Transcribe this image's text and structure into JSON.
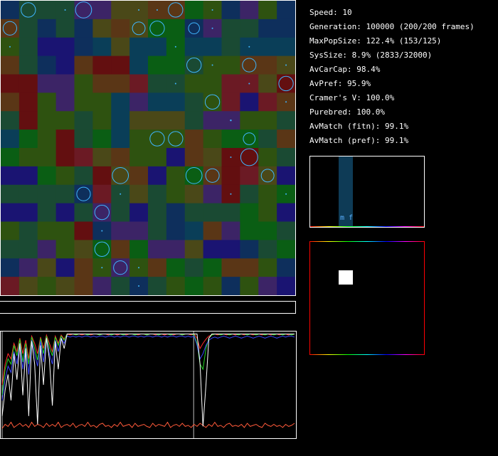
{
  "stats": [
    "Speed: 10",
    "Generation: 100000 (200/200 frames)",
    "MaxPopSize: 122.4% (153/125)",
    "SysSize: 8.9% (2833/32000)",
    "AvCarCap: 98.4%",
    "AvPref: 95.9%",
    "Cramer's V: 100.0%",
    "Purebred: 100.0%",
    "AvMatch (fitn): 99.1%",
    "AvMatch (pref): 99.1%"
  ],
  "pref_panel": {
    "label": "m f"
  },
  "colors": {
    "palette": [
      "#1a4a33",
      "#0a5e14",
      "#2e5210",
      "#3c2466",
      "#0e2f5c",
      "#1a1472",
      "#630f10",
      "#6b1a24",
      "#4a4818",
      "#5a3616",
      "#0a3e58"
    ],
    "organism": "#3fb6ff",
    "history_lines": [
      "#ffffff",
      "#ff2b2b",
      "#24d824",
      "#3a46ff",
      "#ff5a3a"
    ]
  },
  "grid": {
    "size": 16,
    "cells": [
      [
        4,
        0,
        0,
        0,
        3,
        3,
        8,
        8,
        9,
        9,
        1,
        2,
        4,
        3,
        2,
        4
      ],
      [
        9,
        0,
        4,
        0,
        4,
        8,
        9,
        8,
        1,
        1,
        4,
        3,
        0,
        0,
        4,
        4
      ],
      [
        2,
        0,
        5,
        5,
        4,
        10,
        8,
        10,
        10,
        1,
        10,
        10,
        0,
        10,
        10,
        10
      ],
      [
        9,
        0,
        4,
        5,
        9,
        6,
        6,
        10,
        1,
        1,
        0,
        2,
        2,
        9,
        9,
        8
      ],
      [
        6,
        6,
        3,
        3,
        2,
        9,
        9,
        7,
        0,
        0,
        2,
        2,
        7,
        7,
        8,
        6
      ],
      [
        9,
        6,
        2,
        3,
        2,
        2,
        10,
        3,
        10,
        10,
        0,
        2,
        7,
        5,
        7,
        9
      ],
      [
        0,
        6,
        2,
        2,
        0,
        2,
        10,
        8,
        8,
        8,
        0,
        3,
        3,
        2,
        2,
        0
      ],
      [
        10,
        1,
        2,
        6,
        0,
        1,
        10,
        2,
        2,
        2,
        9,
        2,
        1,
        1,
        0,
        9
      ],
      [
        1,
        2,
        2,
        6,
        7,
        8,
        9,
        2,
        2,
        5,
        9,
        8,
        6,
        6,
        2,
        0
      ],
      [
        5,
        5,
        1,
        2,
        0,
        6,
        8,
        9,
        5,
        2,
        1,
        9,
        6,
        7,
        8,
        5
      ],
      [
        0,
        0,
        0,
        0,
        4,
        7,
        0,
        8,
        0,
        2,
        8,
        3,
        6,
        0,
        2,
        1
      ],
      [
        5,
        5,
        0,
        5,
        0,
        3,
        0,
        5,
        0,
        4,
        0,
        0,
        0,
        1,
        2,
        5
      ],
      [
        2,
        0,
        2,
        2,
        6,
        4,
        3,
        3,
        0,
        4,
        10,
        9,
        3,
        1,
        1,
        0
      ],
      [
        0,
        0,
        3,
        2,
        8,
        1,
        9,
        1,
        3,
        3,
        8,
        5,
        5,
        4,
        0,
        1
      ],
      [
        4,
        3,
        8,
        5,
        9,
        2,
        3,
        2,
        9,
        1,
        0,
        1,
        9,
        9,
        2,
        4
      ],
      [
        7,
        8,
        2,
        8,
        9,
        3,
        0,
        4,
        0,
        2,
        1,
        2,
        4,
        2,
        3,
        5
      ]
    ],
    "organisms": [
      [
        0,
        1,
        0.85
      ],
      [
        0,
        3,
        0.05
      ],
      [
        0,
        4,
        0.95
      ],
      [
        0,
        7,
        0.05
      ],
      [
        0,
        8,
        0.05
      ],
      [
        0,
        9,
        0.85
      ],
      [
        0,
        11,
        0.05
      ],
      [
        1,
        0,
        0.8
      ],
      [
        1,
        7,
        0.75
      ],
      [
        1,
        8,
        0.85
      ],
      [
        1,
        10,
        0.65
      ],
      [
        1,
        11,
        0.05
      ],
      [
        2,
        0,
        0.05
      ],
      [
        2,
        9,
        0.05
      ],
      [
        2,
        13,
        0.05
      ],
      [
        3,
        10,
        0.85
      ],
      [
        3,
        11,
        0.05
      ],
      [
        3,
        13,
        0.8
      ],
      [
        3,
        15,
        0.05
      ],
      [
        4,
        9,
        0.05
      ],
      [
        4,
        13,
        0.05
      ],
      [
        4,
        15,
        0.85
      ],
      [
        5,
        11,
        0.85
      ],
      [
        5,
        15,
        0.05
      ],
      [
        6,
        12,
        0.1
      ],
      [
        7,
        8,
        0.85
      ],
      [
        7,
        9,
        0.85
      ],
      [
        7,
        13,
        0.7
      ],
      [
        8,
        12,
        0.05
      ],
      [
        8,
        13,
        1.0
      ],
      [
        9,
        6,
        0.95
      ],
      [
        9,
        10,
        0.95
      ],
      [
        9,
        11,
        0.8
      ],
      [
        9,
        14,
        0.75
      ],
      [
        10,
        4,
        0.8
      ],
      [
        10,
        6,
        0.05
      ],
      [
        10,
        12,
        0.05
      ],
      [
        10,
        15,
        0.05
      ],
      [
        11,
        5,
        0.85
      ],
      [
        12,
        5,
        0.05
      ],
      [
        13,
        5,
        0.85
      ],
      [
        14,
        5,
        0.05
      ],
      [
        14,
        6,
        0.8
      ],
      [
        14,
        7,
        0.05
      ],
      [
        15,
        7,
        0.05
      ]
    ]
  },
  "history": {
    "series": [
      {
        "name": "white",
        "values": [
          0.2,
          0.45,
          0.6,
          0.35,
          0.8,
          0.55,
          0.9,
          0.4,
          0.85,
          0.2,
          0.92,
          0.7,
          0.12,
          0.88,
          0.5,
          0.95,
          0.75,
          0.3,
          0.92,
          0.65,
          0.95,
          0.85,
          0.99,
          0.99,
          0.99,
          0.99,
          0.99,
          0.99,
          0.99,
          0.99,
          0.99,
          0.99,
          0.99,
          0.99,
          0.99,
          0.99,
          0.99,
          0.99,
          0.99,
          0.99,
          0.99,
          0.99,
          0.99,
          0.99,
          0.99,
          0.99,
          0.99,
          0.99,
          0.99,
          0.99,
          0.99,
          0.99,
          0.99,
          0.99,
          0.99,
          0.99,
          0.99,
          0.99,
          0.99,
          0.99,
          0.99,
          0.99,
          0.99,
          0.99,
          0.99,
          0.99,
          0.99,
          0.7,
          0.1,
          0.5,
          0.95,
          0.99,
          0.99,
          0.99,
          0.99,
          0.99,
          0.99,
          0.99,
          0.99,
          0.99,
          0.99,
          0.99,
          0.99,
          0.99,
          0.99,
          0.99,
          0.99,
          0.99,
          0.99,
          0.99,
          0.99,
          0.99,
          0.99,
          0.99,
          0.99,
          0.99,
          0.99,
          0.99,
          0.99,
          0.99
        ]
      },
      {
        "name": "red",
        "values": [
          0.5,
          0.7,
          0.8,
          0.75,
          0.9,
          0.82,
          0.95,
          0.8,
          0.93,
          0.75,
          0.97,
          0.9,
          0.8,
          0.96,
          0.85,
          0.98,
          0.9,
          0.82,
          0.97,
          0.9,
          0.98,
          0.94,
          0.99,
          0.98,
          0.99,
          0.98,
          0.99,
          0.98,
          0.99,
          0.99,
          0.98,
          0.99,
          0.99,
          0.98,
          0.99,
          0.99,
          0.98,
          0.99,
          0.99,
          0.98,
          0.99,
          0.99,
          0.98,
          0.99,
          0.99,
          0.99,
          0.98,
          0.99,
          0.99,
          0.98,
          0.99,
          0.99,
          0.98,
          0.99,
          0.99,
          0.98,
          0.99,
          0.99,
          0.98,
          0.99,
          0.99,
          0.98,
          0.99,
          0.99,
          0.98,
          0.99,
          0.95,
          0.85,
          0.9,
          0.94,
          0.97,
          0.98,
          0.99,
          0.98,
          0.99,
          0.99,
          0.98,
          0.99,
          0.99,
          0.98,
          0.99,
          0.99,
          0.98,
          0.99,
          0.99,
          0.98,
          0.99,
          0.99,
          0.98,
          0.99,
          0.99,
          0.98,
          0.99,
          0.99,
          0.98,
          0.99,
          0.99,
          0.98,
          0.99,
          0.99
        ]
      },
      {
        "name": "green",
        "values": [
          0.4,
          0.65,
          0.75,
          0.7,
          0.88,
          0.78,
          0.94,
          0.72,
          0.9,
          0.7,
          0.96,
          0.85,
          0.74,
          0.95,
          0.8,
          0.97,
          0.86,
          0.78,
          0.96,
          0.88,
          0.97,
          0.93,
          0.99,
          0.99,
          0.99,
          0.98,
          0.99,
          0.99,
          0.99,
          0.98,
          0.99,
          0.99,
          0.99,
          0.98,
          0.99,
          0.99,
          0.99,
          0.98,
          0.99,
          0.99,
          0.99,
          0.98,
          0.99,
          0.99,
          0.99,
          0.98,
          0.99,
          0.99,
          0.99,
          0.98,
          0.99,
          0.99,
          0.99,
          0.98,
          0.99,
          0.99,
          0.99,
          0.98,
          0.99,
          0.99,
          0.99,
          0.98,
          0.99,
          0.99,
          0.99,
          0.98,
          0.9,
          0.7,
          0.65,
          0.85,
          0.95,
          0.98,
          0.99,
          0.99,
          0.98,
          0.99,
          0.99,
          0.98,
          0.99,
          0.99,
          0.98,
          0.99,
          0.99,
          0.98,
          0.99,
          0.99,
          0.98,
          0.99,
          0.99,
          0.98,
          0.99,
          0.99,
          0.98,
          0.99,
          0.99,
          0.98,
          0.99,
          0.99,
          0.98,
          0.99
        ]
      },
      {
        "name": "blue",
        "values": [
          0.35,
          0.55,
          0.68,
          0.62,
          0.82,
          0.7,
          0.9,
          0.65,
          0.86,
          0.6,
          0.93,
          0.8,
          0.68,
          0.92,
          0.72,
          0.95,
          0.8,
          0.7,
          0.93,
          0.82,
          0.95,
          0.9,
          0.97,
          0.96,
          0.97,
          0.96,
          0.97,
          0.96,
          0.97,
          0.97,
          0.96,
          0.97,
          0.96,
          0.97,
          0.97,
          0.96,
          0.97,
          0.97,
          0.96,
          0.97,
          0.96,
          0.97,
          0.97,
          0.96,
          0.97,
          0.97,
          0.96,
          0.97,
          0.96,
          0.97,
          0.97,
          0.96,
          0.97,
          0.97,
          0.96,
          0.97,
          0.96,
          0.97,
          0.97,
          0.96,
          0.97,
          0.97,
          0.96,
          0.97,
          0.96,
          0.97,
          0.88,
          0.75,
          0.8,
          0.88,
          0.93,
          0.95,
          0.96,
          0.95,
          0.96,
          0.97,
          0.96,
          0.95,
          0.96,
          0.97,
          0.96,
          0.95,
          0.96,
          0.97,
          0.96,
          0.95,
          0.96,
          0.97,
          0.96,
          0.95,
          0.96,
          0.97,
          0.96,
          0.95,
          0.96,
          0.97,
          0.96,
          0.97,
          0.97,
          0.96
        ]
      },
      {
        "name": "orange",
        "values": [
          0.08,
          0.12,
          0.1,
          0.14,
          0.09,
          0.11,
          0.13,
          0.1,
          0.12,
          0.09,
          0.14,
          0.1,
          0.12,
          0.11,
          0.09,
          0.13,
          0.1,
          0.12,
          0.1,
          0.14,
          0.09,
          0.11,
          0.12,
          0.1,
          0.13,
          0.09,
          0.11,
          0.12,
          0.1,
          0.14,
          0.1,
          0.11,
          0.09,
          0.12,
          0.13,
          0.1,
          0.11,
          0.09,
          0.12,
          0.1,
          0.14,
          0.1,
          0.11,
          0.12,
          0.09,
          0.13,
          0.1,
          0.11,
          0.12,
          0.1,
          0.09,
          0.13,
          0.1,
          0.12,
          0.11,
          0.1,
          0.14,
          0.09,
          0.11,
          0.12,
          0.1,
          0.13,
          0.1,
          0.11,
          0.09,
          0.12,
          0.1,
          0.13,
          0.11,
          0.09,
          0.12,
          0.1,
          0.14,
          0.1,
          0.11,
          0.09,
          0.12,
          0.13,
          0.1,
          0.11,
          0.1,
          0.12,
          0.09,
          0.13,
          0.1,
          0.11,
          0.12,
          0.1,
          0.09,
          0.13,
          0.11,
          0.1,
          0.12,
          0.1,
          0.11,
          0.09,
          0.12,
          0.1,
          0.11,
          0.13
        ]
      }
    ],
    "markers": [
      0.0,
      0.655
    ]
  }
}
